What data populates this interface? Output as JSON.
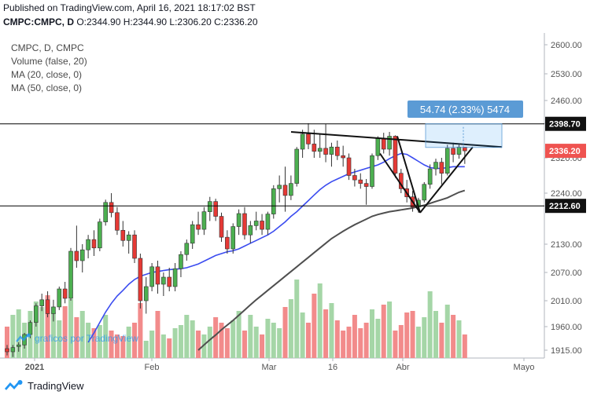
{
  "header": {
    "published": "Published on TradingView.com, April 16, 2021 18:17:02 BST",
    "symbol": "CMPC:CMPC, D",
    "ohlc_text": " O:2344.90 H:2344.90 L:2306.20 C:2336.20"
  },
  "legend": {
    "title": "CMPC, D, CMPC",
    "volume": "Volume (false, 20)",
    "ma20": "MA (20, close, 0)",
    "ma50": "MA (50, close, 0)"
  },
  "watermark": "graficos por TradingView",
  "footer": {
    "brand": "TradingView"
  },
  "colors": {
    "up": "#26a69a",
    "down": "#ef5350",
    "vol_up": "#a5d6a7",
    "vol_down": "#f28b8b",
    "ma20": "#3b4cf0",
    "ma50": "#4f4f4f",
    "measure": "#5b9bd5"
  },
  "chart_data": {
    "type": "candlestick",
    "y_axis_ticks": [
      2600,
      2530,
      2460,
      2400,
      2320,
      2240,
      2130,
      2070,
      2010,
      1960,
      1915
    ],
    "x_axis_ticks": [
      "2021",
      "Feb",
      "Mar",
      "16",
      "Abr",
      "Mayo"
    ],
    "last_price_label": "2336.20",
    "horizontal_levels": [
      {
        "value": 2398.7,
        "label": "2398.70"
      },
      {
        "value": 2212.6,
        "label": "2212.60"
      }
    ],
    "measure_label": "54.74 (2.33%) 5474",
    "candles": [
      {
        "o": 1918,
        "h": 1925,
        "l": 1905,
        "c": 1912
      },
      {
        "o": 1912,
        "h": 1925,
        "l": 1902,
        "c": 1920
      },
      {
        "o": 1922,
        "h": 1930,
        "l": 1912,
        "c": 1925
      },
      {
        "o": 1925,
        "h": 1948,
        "l": 1918,
        "c": 1945
      },
      {
        "o": 1945,
        "h": 1972,
        "l": 1938,
        "c": 1968
      },
      {
        "o": 1968,
        "h": 2005,
        "l": 1960,
        "c": 2000
      },
      {
        "o": 2000,
        "h": 2025,
        "l": 1990,
        "c": 2012
      },
      {
        "o": 2012,
        "h": 2030,
        "l": 1978,
        "c": 1985
      },
      {
        "o": 1985,
        "h": 2012,
        "l": 1970,
        "c": 1998
      },
      {
        "o": 1998,
        "h": 2040,
        "l": 1992,
        "c": 2035
      },
      {
        "o": 2035,
        "h": 2050,
        "l": 2005,
        "c": 2015
      },
      {
        "o": 2015,
        "h": 2122,
        "l": 2010,
        "c": 2115
      },
      {
        "o": 2115,
        "h": 2170,
        "l": 2080,
        "c": 2095
      },
      {
        "o": 2095,
        "h": 2130,
        "l": 2070,
        "c": 2118
      },
      {
        "o": 2118,
        "h": 2150,
        "l": 2100,
        "c": 2140
      },
      {
        "o": 2140,
        "h": 2160,
        "l": 2105,
        "c": 2122
      },
      {
        "o": 2122,
        "h": 2185,
        "l": 2115,
        "c": 2178
      },
      {
        "o": 2178,
        "h": 2226,
        "l": 2170,
        "c": 2220
      },
      {
        "o": 2220,
        "h": 2240,
        "l": 2188,
        "c": 2198
      },
      {
        "o": 2198,
        "h": 2210,
        "l": 2150,
        "c": 2160
      },
      {
        "o": 2160,
        "h": 2180,
        "l": 2125,
        "c": 2138
      },
      {
        "o": 2138,
        "h": 2158,
        "l": 2110,
        "c": 2150
      },
      {
        "o": 2150,
        "h": 2160,
        "l": 2090,
        "c": 2100
      },
      {
        "o": 2100,
        "h": 2110,
        "l": 1995,
        "c": 2010
      },
      {
        "o": 2010,
        "h": 2060,
        "l": 1985,
        "c": 2040
      },
      {
        "o": 2040,
        "h": 2090,
        "l": 2030,
        "c": 2082
      },
      {
        "o": 2082,
        "h": 2095,
        "l": 2025,
        "c": 2045
      },
      {
        "o": 2045,
        "h": 2070,
        "l": 2020,
        "c": 2060
      },
      {
        "o": 2060,
        "h": 2080,
        "l": 2030,
        "c": 2040
      },
      {
        "o": 2040,
        "h": 2090,
        "l": 2030,
        "c": 2078
      },
      {
        "o": 2078,
        "h": 2115,
        "l": 2060,
        "c": 2108
      },
      {
        "o": 2108,
        "h": 2140,
        "l": 2095,
        "c": 2132
      },
      {
        "o": 2132,
        "h": 2180,
        "l": 2120,
        "c": 2172
      },
      {
        "o": 2172,
        "h": 2200,
        "l": 2150,
        "c": 2162
      },
      {
        "o": 2162,
        "h": 2210,
        "l": 2150,
        "c": 2200
      },
      {
        "o": 2200,
        "h": 2232,
        "l": 2180,
        "c": 2222
      },
      {
        "o": 2222,
        "h": 2228,
        "l": 2180,
        "c": 2190
      },
      {
        "o": 2190,
        "h": 2198,
        "l": 2135,
        "c": 2145
      },
      {
        "o": 2145,
        "h": 2160,
        "l": 2110,
        "c": 2120
      },
      {
        "o": 2120,
        "h": 2175,
        "l": 2110,
        "c": 2168
      },
      {
        "o": 2168,
        "h": 2205,
        "l": 2150,
        "c": 2196
      },
      {
        "o": 2196,
        "h": 2210,
        "l": 2140,
        "c": 2150
      },
      {
        "o": 2150,
        "h": 2180,
        "l": 2132,
        "c": 2170
      },
      {
        "o": 2170,
        "h": 2200,
        "l": 2160,
        "c": 2180
      },
      {
        "o": 2180,
        "h": 2195,
        "l": 2150,
        "c": 2162
      },
      {
        "o": 2162,
        "h": 2200,
        "l": 2150,
        "c": 2195
      },
      {
        "o": 2195,
        "h": 2258,
        "l": 2185,
        "c": 2250
      },
      {
        "o": 2250,
        "h": 2280,
        "l": 2220,
        "c": 2258
      },
      {
        "o": 2258,
        "h": 2300,
        "l": 2200,
        "c": 2235
      },
      {
        "o": 2235,
        "h": 2280,
        "l": 2225,
        "c": 2262
      },
      {
        "o": 2262,
        "h": 2345,
        "l": 2255,
        "c": 2340
      },
      {
        "o": 2340,
        "h": 2385,
        "l": 2320,
        "c": 2375
      },
      {
        "o": 2375,
        "h": 2400,
        "l": 2340,
        "c": 2352
      },
      {
        "o": 2352,
        "h": 2385,
        "l": 2320,
        "c": 2335
      },
      {
        "o": 2335,
        "h": 2375,
        "l": 2320,
        "c": 2342
      },
      {
        "o": 2342,
        "h": 2398,
        "l": 2310,
        "c": 2328
      },
      {
        "o": 2328,
        "h": 2355,
        "l": 2300,
        "c": 2345
      },
      {
        "o": 2345,
        "h": 2360,
        "l": 2315,
        "c": 2325
      },
      {
        "o": 2325,
        "h": 2348,
        "l": 2300,
        "c": 2320
      },
      {
        "o": 2320,
        "h": 2330,
        "l": 2270,
        "c": 2280
      },
      {
        "o": 2280,
        "h": 2295,
        "l": 2255,
        "c": 2270
      },
      {
        "o": 2270,
        "h": 2285,
        "l": 2250,
        "c": 2262
      },
      {
        "o": 2262,
        "h": 2272,
        "l": 2215,
        "c": 2255
      },
      {
        "o": 2255,
        "h": 2330,
        "l": 2250,
        "c": 2325
      },
      {
        "o": 2325,
        "h": 2370,
        "l": 2315,
        "c": 2365
      },
      {
        "o": 2365,
        "h": 2378,
        "l": 2330,
        "c": 2340
      },
      {
        "o": 2340,
        "h": 2380,
        "l": 2325,
        "c": 2370
      },
      {
        "o": 2370,
        "h": 2372,
        "l": 2275,
        "c": 2285
      },
      {
        "o": 2285,
        "h": 2295,
        "l": 2240,
        "c": 2250
      },
      {
        "o": 2250,
        "h": 2270,
        "l": 2220,
        "c": 2232
      },
      {
        "o": 2232,
        "h": 2245,
        "l": 2200,
        "c": 2210
      },
      {
        "o": 2210,
        "h": 2230,
        "l": 2198,
        "c": 2225
      },
      {
        "o": 2225,
        "h": 2265,
        "l": 2220,
        "c": 2260
      },
      {
        "o": 2260,
        "h": 2305,
        "l": 2250,
        "c": 2295
      },
      {
        "o": 2295,
        "h": 2318,
        "l": 2280,
        "c": 2310
      },
      {
        "o": 2310,
        "h": 2320,
        "l": 2260,
        "c": 2285
      },
      {
        "o": 2285,
        "h": 2350,
        "l": 2280,
        "c": 2342
      },
      {
        "o": 2342,
        "h": 2355,
        "l": 2310,
        "c": 2328
      },
      {
        "o": 2328,
        "h": 2350,
        "l": 2318,
        "c": 2345
      },
      {
        "o": 2344.9,
        "h": 2344.9,
        "l": 2306.2,
        "c": 2336.2
      }
    ],
    "volume": [
      40,
      55,
      62,
      45,
      60,
      72,
      65,
      80,
      58,
      48,
      66,
      75,
      52,
      60,
      45,
      38,
      42,
      55,
      35,
      30,
      28,
      40,
      45,
      70,
      22,
      35,
      60,
      30,
      25,
      38,
      42,
      55,
      48,
      35,
      30,
      40,
      52,
      45,
      38,
      48,
      60,
      35,
      55,
      40,
      30,
      50,
      45,
      38,
      65,
      75,
      100,
      58,
      45,
      82,
      95,
      62,
      70,
      48,
      35,
      40,
      55,
      38,
      45,
      62,
      50,
      68,
      72,
      35,
      42,
      58,
      60,
      40,
      52,
      85,
      60,
      45,
      68,
      55,
      48,
      30
    ],
    "ma20": [
      null,
      null,
      null,
      null,
      null,
      null,
      null,
      null,
      null,
      null,
      null,
      null,
      null,
      null,
      1930,
      1948,
      1968,
      1988,
      2005,
      2020,
      2032,
      2045,
      2055,
      2062,
      2066,
      2070,
      2072,
      2074,
      2076,
      2077,
      2078,
      2080,
      2084,
      2088,
      2094,
      2100,
      2106,
      2110,
      2114,
      2116,
      2120,
      2126,
      2132,
      2138,
      2144,
      2150,
      2158,
      2168,
      2178,
      2190,
      2200,
      2212,
      2224,
      2236,
      2248,
      2258,
      2266,
      2272,
      2278,
      2284,
      2288,
      2292,
      2296,
      2300,
      2304,
      2310,
      2318,
      2325,
      2330,
      2328,
      2320,
      2312,
      2304,
      2298,
      2296,
      2296,
      2298,
      2300,
      2300,
      2300
    ],
    "ma50": [
      null,
      null,
      null,
      null,
      null,
      null,
      null,
      null,
      null,
      null,
      null,
      null,
      null,
      null,
      null,
      null,
      null,
      null,
      null,
      null,
      null,
      null,
      null,
      null,
      null,
      null,
      null,
      null,
      null,
      null,
      null,
      null,
      null,
      1915,
      1925,
      1935,
      1944,
      1954,
      1963,
      1972,
      1982,
      1992,
      2002,
      2012,
      2022,
      2032,
      2042,
      2052,
      2062,
      2072,
      2082,
      2092,
      2102,
      2112,
      2122,
      2132,
      2142,
      2150,
      2158,
      2165,
      2172,
      2178,
      2184,
      2190,
      2194,
      2197,
      2200,
      2202,
      2204,
      2206,
      2208,
      2211,
      2214,
      2218,
      2222,
      2226,
      2230,
      2236,
      2242,
      2246
    ]
  }
}
